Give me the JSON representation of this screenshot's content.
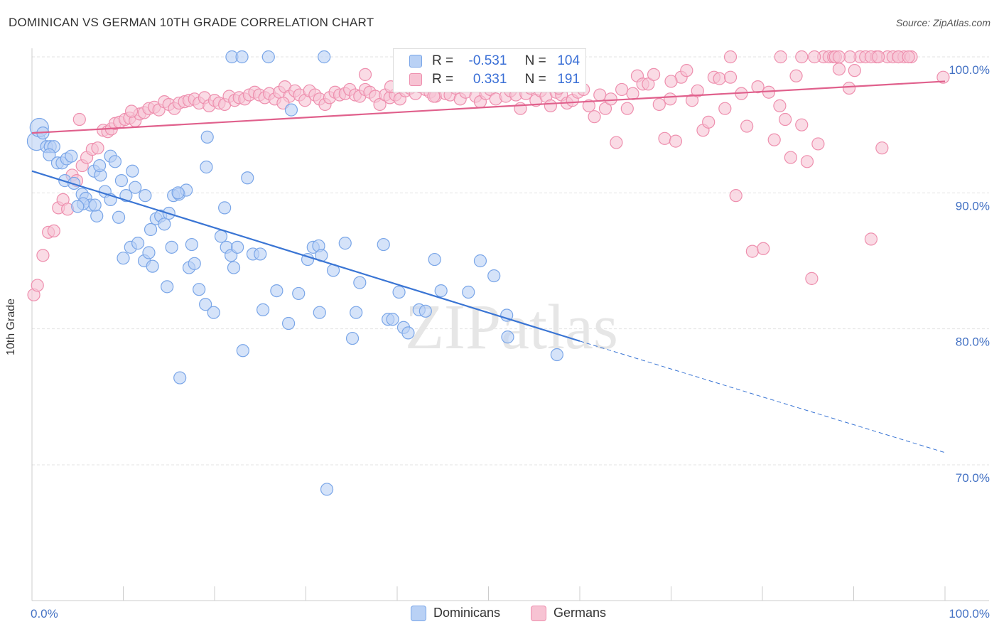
{
  "chart_data": {
    "type": "scatter",
    "title": "DOMINICAN VS GERMAN 10TH GRADE CORRELATION CHART",
    "source": "Source: ZipAtlas.com",
    "watermark": "ZIPatlas",
    "xlabel": "",
    "ylabel": "10th Grade",
    "xlim": [
      0,
      100
    ],
    "ylim": [
      60,
      101
    ],
    "x_tick_labels": [
      "0.0%",
      "100.0%"
    ],
    "y_ticks": [
      70,
      80,
      90,
      100
    ],
    "y_tick_labels": [
      "70.0%",
      "80.0%",
      "90.0%",
      "100.0%"
    ],
    "grid": true,
    "legend_position": "top-center",
    "legend": [
      {
        "name": "Dominicans",
        "r_label": "R =",
        "r_value": "-0.531",
        "n_label": "N =",
        "n_value": "104",
        "color": "#7aa6e8",
        "fill": "#b9d1f5"
      },
      {
        "name": "Germans",
        "r_label": "R =",
        "r_value": "0.331",
        "n_label": "N =",
        "n_value": "191",
        "color": "#ee8fae",
        "fill": "#f7c3d3"
      }
    ],
    "series": [
      {
        "name": "Dominicans",
        "color": "#7aa6e8",
        "fill": "#b9d1f5",
        "trend": {
          "x": [
            0,
            60
          ],
          "y": [
            91.6,
            79.1
          ],
          "color": "#3a75d4"
        },
        "trend_dashed": {
          "x": [
            60,
            100
          ],
          "y": [
            79.1,
            70.9
          ],
          "color": "#3a75d4"
        },
        "points": [
          [
            0.5,
            93.8
          ],
          [
            0.8,
            94.8
          ],
          [
            1.2,
            94.4
          ],
          [
            1.6,
            93.4
          ],
          [
            2,
            93.4
          ],
          [
            2.4,
            93.4
          ],
          [
            1.9,
            92.8
          ],
          [
            2.8,
            92.2
          ],
          [
            3.3,
            92.2
          ],
          [
            3.8,
            92.5
          ],
          [
            4.3,
            92.7
          ],
          [
            3.6,
            90.9
          ],
          [
            4.6,
            90.7
          ],
          [
            5.5,
            89.9
          ],
          [
            5.9,
            89.6
          ],
          [
            6.4,
            89.1
          ],
          [
            7.1,
            88.3
          ],
          [
            5.6,
            89.2
          ],
          [
            6.8,
            91.6
          ],
          [
            7.5,
            91.3
          ],
          [
            8.6,
            92.7
          ],
          [
            9.1,
            92.3
          ],
          [
            7.4,
            92
          ],
          [
            8,
            90.1
          ],
          [
            8.6,
            89.5
          ],
          [
            9.8,
            90.9
          ],
          [
            10.3,
            89.8
          ],
          [
            11,
            91.6
          ],
          [
            11.3,
            90.4
          ],
          [
            12.4,
            89.8
          ],
          [
            13,
            87.3
          ],
          [
            13.6,
            88.1
          ],
          [
            14.1,
            88.3
          ],
          [
            14.5,
            87.7
          ],
          [
            15,
            88.5
          ],
          [
            15.5,
            89.8
          ],
          [
            16.1,
            89.9
          ],
          [
            16.9,
            90.2
          ],
          [
            10,
            85.2
          ],
          [
            10.8,
            86
          ],
          [
            11.6,
            86.3
          ],
          [
            12.3,
            85
          ],
          [
            12.8,
            85.6
          ],
          [
            13.2,
            84.6
          ],
          [
            14.8,
            83.1
          ],
          [
            15.3,
            86
          ],
          [
            17.2,
            84.5
          ],
          [
            17.5,
            86.2
          ],
          [
            17.8,
            84.8
          ],
          [
            18.3,
            82.9
          ],
          [
            19,
            81.8
          ],
          [
            19.9,
            81.2
          ],
          [
            20.7,
            86.8
          ],
          [
            21.3,
            86
          ],
          [
            21.8,
            85.4
          ],
          [
            22.1,
            84.5
          ],
          [
            22.5,
            86
          ],
          [
            24.2,
            85.5
          ],
          [
            25,
            85.5
          ],
          [
            23.1,
            78.4
          ],
          [
            25.3,
            81.4
          ],
          [
            26.8,
            82.8
          ],
          [
            28.1,
            80.4
          ],
          [
            29.2,
            82.6
          ],
          [
            30.2,
            85.1
          ],
          [
            30.8,
            86
          ],
          [
            31.4,
            86.1
          ],
          [
            31.7,
            85.4
          ],
          [
            31.5,
            81.2
          ],
          [
            33,
            84.3
          ],
          [
            34.3,
            86.3
          ],
          [
            35.1,
            79.3
          ],
          [
            35.5,
            81.2
          ],
          [
            35.9,
            83.4
          ],
          [
            38.5,
            86.2
          ],
          [
            39,
            80.7
          ],
          [
            39.5,
            80.7
          ],
          [
            40.2,
            82.7
          ],
          [
            40.7,
            80.1
          ],
          [
            41.2,
            79.7
          ],
          [
            42.4,
            81.4
          ],
          [
            43.1,
            81.3
          ],
          [
            44.1,
            85.1
          ],
          [
            44.8,
            82.8
          ],
          [
            47.8,
            82.7
          ],
          [
            49.1,
            85
          ],
          [
            50.6,
            83.9
          ],
          [
            52,
            81
          ],
          [
            52.1,
            79.4
          ],
          [
            57.5,
            78.1
          ],
          [
            16.2,
            76.4
          ],
          [
            21.1,
            88.9
          ],
          [
            23.6,
            91.1
          ],
          [
            19.1,
            91.9
          ],
          [
            19.2,
            94.1
          ],
          [
            21.9,
            100
          ],
          [
            23,
            100
          ],
          [
            25.9,
            100
          ],
          [
            32,
            100
          ],
          [
            28.4,
            96.1
          ],
          [
            32.3,
            68.2
          ],
          [
            16,
            90
          ],
          [
            6.9,
            89.1
          ],
          [
            5,
            89
          ],
          [
            9.5,
            88.2
          ]
        ]
      },
      {
        "name": "Germans",
        "color": "#ee8fae",
        "fill": "#f7c3d3",
        "trend": {
          "x": [
            0,
            100
          ],
          "y": [
            94.4,
            98.2
          ],
          "color": "#e0608c"
        },
        "points": [
          [
            0.2,
            82.5
          ],
          [
            0.6,
            83.2
          ],
          [
            1.2,
            85.4
          ],
          [
            1.8,
            87.1
          ],
          [
            2.4,
            87.2
          ],
          [
            2.9,
            88.9
          ],
          [
            3.4,
            89.5
          ],
          [
            3.9,
            88.8
          ],
          [
            4.4,
            91.3
          ],
          [
            4.9,
            90.9
          ],
          [
            5.5,
            92
          ],
          [
            6,
            92.6
          ],
          [
            6.6,
            93.2
          ],
          [
            7.2,
            93.3
          ],
          [
            7.8,
            94.6
          ],
          [
            8.3,
            94.5
          ],
          [
            8.7,
            94.7
          ],
          [
            9.1,
            95.1
          ],
          [
            9.6,
            95.2
          ],
          [
            10.2,
            95.4
          ],
          [
            10.7,
            95.5
          ],
          [
            11.3,
            95.3
          ],
          [
            11.8,
            95.8
          ],
          [
            12.3,
            95.9
          ],
          [
            12.8,
            96.2
          ],
          [
            13.4,
            96.3
          ],
          [
            13.9,
            96.1
          ],
          [
            14.5,
            96.7
          ],
          [
            15,
            96.5
          ],
          [
            15.6,
            96.2
          ],
          [
            16.1,
            96.6
          ],
          [
            16.7,
            96.7
          ],
          [
            17.2,
            96.8
          ],
          [
            17.8,
            96.9
          ],
          [
            18.3,
            96.6
          ],
          [
            18.9,
            97
          ],
          [
            19.4,
            96.4
          ],
          [
            20,
            96.8
          ],
          [
            20.5,
            96.6
          ],
          [
            21.1,
            96.5
          ],
          [
            21.6,
            97.1
          ],
          [
            22.2,
            96.8
          ],
          [
            22.7,
            97
          ],
          [
            23.3,
            96.9
          ],
          [
            23.8,
            97.2
          ],
          [
            24.4,
            97.4
          ],
          [
            24.9,
            97.2
          ],
          [
            25.5,
            97
          ],
          [
            26,
            97.3
          ],
          [
            26.6,
            96.9
          ],
          [
            27.1,
            97.4
          ],
          [
            27.7,
            97.8
          ],
          [
            28.2,
            97.1
          ],
          [
            28.8,
            97.5
          ],
          [
            29.3,
            97.2
          ],
          [
            29.9,
            96.8
          ],
          [
            30.4,
            97.5
          ],
          [
            31,
            97.2
          ],
          [
            31.5,
            96.9
          ],
          [
            32.1,
            96.5
          ],
          [
            32.6,
            97
          ],
          [
            33.2,
            97.4
          ],
          [
            33.7,
            97.2
          ],
          [
            34.3,
            97.3
          ],
          [
            34.8,
            97.6
          ],
          [
            35.4,
            97.2
          ],
          [
            35.9,
            97.1
          ],
          [
            36.5,
            97.6
          ],
          [
            37,
            97.4
          ],
          [
            37.6,
            97.1
          ],
          [
            38.1,
            96.5
          ],
          [
            38.7,
            97.2
          ],
          [
            39.2,
            97
          ],
          [
            39.8,
            97.2
          ],
          [
            40.3,
            96.9
          ],
          [
            40.9,
            97.5
          ],
          [
            41.4,
            97.7
          ],
          [
            42,
            97.3
          ],
          [
            42.5,
            97.8
          ],
          [
            43.1,
            97.6
          ],
          [
            43.6,
            97.4
          ],
          [
            44.2,
            97.1
          ],
          [
            44.7,
            97.9
          ],
          [
            45.3,
            97.3
          ],
          [
            45.8,
            97.2
          ],
          [
            46.4,
            97.7
          ],
          [
            46.9,
            96.9
          ],
          [
            47.5,
            97.4
          ],
          [
            48,
            98
          ],
          [
            48.6,
            97.1
          ],
          [
            49.1,
            96.7
          ],
          [
            49.7,
            97.3
          ],
          [
            50.2,
            97.6
          ],
          [
            50.8,
            96.9
          ],
          [
            51.3,
            98.2
          ],
          [
            51.9,
            97.1
          ],
          [
            52.4,
            97.5
          ],
          [
            53,
            97.2
          ],
          [
            53.5,
            96.2
          ],
          [
            54.1,
            97.3
          ],
          [
            54.6,
            97.7
          ],
          [
            55.2,
            96.8
          ],
          [
            55.7,
            97.5
          ],
          [
            56.3,
            97.1
          ],
          [
            56.8,
            96.4
          ],
          [
            57.4,
            97.4
          ],
          [
            58,
            97.2
          ],
          [
            58.6,
            96.6
          ],
          [
            59.2,
            96.8
          ],
          [
            59.8,
            97.4
          ],
          [
            60.4,
            97.6
          ],
          [
            61,
            96.4
          ],
          [
            61.6,
            95.6
          ],
          [
            62.2,
            97.2
          ],
          [
            62.8,
            96.2
          ],
          [
            63.4,
            96.9
          ],
          [
            64,
            93.7
          ],
          [
            64.6,
            97.6
          ],
          [
            65.2,
            96.2
          ],
          [
            65.8,
            97.3
          ],
          [
            66.3,
            98.6
          ],
          [
            66.9,
            98
          ],
          [
            67.5,
            98
          ],
          [
            68.1,
            98.7
          ],
          [
            68.7,
            96.5
          ],
          [
            69.3,
            94
          ],
          [
            69.9,
            96.9
          ],
          [
            70.5,
            93.8
          ],
          [
            71.1,
            98.5
          ],
          [
            71.7,
            99
          ],
          [
            72.3,
            96.8
          ],
          [
            72.9,
            97.5
          ],
          [
            73.5,
            94.6
          ],
          [
            74.1,
            95.2
          ],
          [
            74.7,
            98.5
          ],
          [
            75.3,
            98.4
          ],
          [
            75.9,
            96.2
          ],
          [
            76.5,
            98.5
          ],
          [
            77.1,
            89.8
          ],
          [
            77.7,
            97.3
          ],
          [
            78.3,
            94.9
          ],
          [
            78.9,
            85.7
          ],
          [
            79.5,
            97.8
          ],
          [
            80.1,
            85.9
          ],
          [
            80.7,
            97.4
          ],
          [
            81.3,
            93.9
          ],
          [
            81.9,
            96.4
          ],
          [
            82.5,
            95.4
          ],
          [
            83.1,
            92.6
          ],
          [
            83.7,
            98.6
          ],
          [
            84.3,
            95
          ],
          [
            84.9,
            92.3
          ],
          [
            85.4,
            83.7
          ],
          [
            86.1,
            93.6
          ],
          [
            86.7,
            100
          ],
          [
            87.3,
            100
          ],
          [
            87.8,
            100
          ],
          [
            88.4,
            99.1
          ],
          [
            89.5,
            97.7
          ],
          [
            90.1,
            99
          ],
          [
            90.7,
            100
          ],
          [
            91.3,
            100
          ],
          [
            91.9,
            86.6
          ],
          [
            92.5,
            100
          ],
          [
            93.1,
            93.3
          ],
          [
            93.7,
            100
          ],
          [
            94.3,
            100
          ],
          [
            94.9,
            100
          ],
          [
            95.5,
            100
          ],
          [
            96.3,
            100
          ],
          [
            99.8,
            98.5
          ],
          [
            76.5,
            100
          ],
          [
            82,
            100
          ],
          [
            84.3,
            100
          ],
          [
            85.7,
            100
          ],
          [
            88,
            100
          ],
          [
            89.6,
            100
          ],
          [
            91.9,
            100
          ],
          [
            94.9,
            100
          ],
          [
            88.4,
            100
          ],
          [
            96,
            100
          ],
          [
            92.7,
            100
          ],
          [
            70,
            98.2
          ],
          [
            44,
            97.1
          ],
          [
            27.5,
            96.6
          ],
          [
            36.5,
            98.7
          ],
          [
            39.3,
            97.8
          ],
          [
            48.4,
            98.4
          ],
          [
            57.7,
            97.7
          ],
          [
            5.2,
            95.4
          ],
          [
            10.9,
            96
          ]
        ]
      }
    ]
  }
}
